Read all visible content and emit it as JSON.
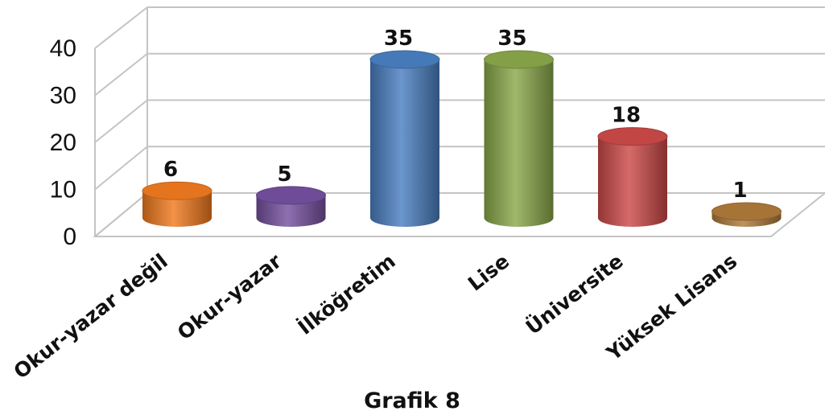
{
  "chart_data": {
    "type": "bar",
    "style": "3d-cylinder",
    "categories": [
      "Okur-yazar değil",
      "Okur-yazar",
      "İlköğretim",
      "Lise",
      "Üniversite",
      "Yüksek Lisans"
    ],
    "values": [
      6,
      5,
      35,
      35,
      18,
      1
    ],
    "colors": [
      "#f07a1e",
      "#7550a0",
      "#4a7fc1",
      "#8aa84a",
      "#cc4a48",
      "#b07a3a"
    ],
    "ylim": [
      0,
      40
    ],
    "yticks": [
      0,
      10,
      20,
      30,
      40
    ],
    "grid": true,
    "data_labels": true,
    "legend": "none"
  },
  "caption": "Grafik 8"
}
